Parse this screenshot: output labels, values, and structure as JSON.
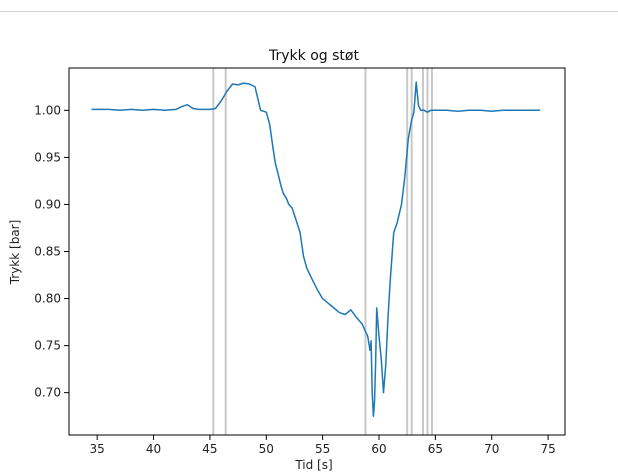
{
  "chart_data": {
    "type": "line",
    "title": "Trykk og støt",
    "xlabel": "Tid [s]",
    "ylabel": "Trykk [bar]",
    "xlim": [
      32.5,
      76.5
    ],
    "ylim": [
      0.655,
      1.045
    ],
    "xticks": [
      35,
      40,
      45,
      50,
      55,
      60,
      65,
      70,
      75
    ],
    "xtick_labels": [
      "35",
      "40",
      "45",
      "50",
      "55",
      "60",
      "65",
      "70",
      "75"
    ],
    "yticks": [
      0.7,
      0.75,
      0.8,
      0.85,
      0.9,
      0.95,
      1.0
    ],
    "ytick_labels": [
      "0.70",
      "0.75",
      "0.80",
      "0.85",
      "0.90",
      "0.95",
      "1.00"
    ],
    "grid": false,
    "colors": {
      "series": "#1f77b4",
      "vlines": "#c8c8c8"
    },
    "vlines": [
      45.3,
      46.4,
      58.8,
      62.5,
      62.9,
      63.9,
      64.3,
      64.7
    ],
    "series": [
      {
        "x": [
          34.5,
          36,
          37,
          38,
          39,
          40,
          41,
          42,
          42.5,
          43,
          43.5,
          44,
          45,
          45.5,
          46,
          46.5,
          47,
          47.5,
          48,
          48.5,
          49,
          49.5,
          50,
          50.3,
          50.6,
          50.8,
          51,
          51.3,
          51.5,
          51.8,
          52,
          52.3,
          52.6,
          53,
          53.3,
          53.6,
          54,
          54.5,
          55,
          55.5,
          56,
          56.5,
          57,
          57.5,
          58,
          58.5,
          58.8,
          59,
          59.2,
          59.3,
          59.4,
          59.5,
          59.6,
          59.7,
          59.8,
          60,
          60.2,
          60.4,
          60.6,
          60.8,
          61,
          61.3,
          61.6,
          62,
          62.3,
          62.6,
          62.9,
          63.1,
          63.3,
          63.5,
          63.7,
          64,
          64.3,
          64.6,
          65,
          66,
          67,
          68,
          69,
          70,
          71,
          72,
          73,
          74.3
        ],
        "y": [
          1.001,
          1.001,
          1.0,
          1.001,
          1.0,
          1.001,
          1.0,
          1.001,
          1.004,
          1.006,
          1.002,
          1.001,
          1.001,
          1.002,
          1.01,
          1.02,
          1.028,
          1.027,
          1.029,
          1.028,
          1.025,
          1.0,
          0.998,
          0.985,
          0.96,
          0.944,
          0.935,
          0.92,
          0.912,
          0.906,
          0.9,
          0.896,
          0.885,
          0.87,
          0.845,
          0.832,
          0.822,
          0.81,
          0.8,
          0.795,
          0.79,
          0.785,
          0.783,
          0.788,
          0.78,
          0.773,
          0.765,
          0.76,
          0.745,
          0.755,
          0.7,
          0.675,
          0.69,
          0.73,
          0.79,
          0.76,
          0.735,
          0.7,
          0.73,
          0.78,
          0.82,
          0.87,
          0.88,
          0.9,
          0.93,
          0.97,
          0.99,
          0.998,
          1.03,
          1.005,
          1.0,
          1.0,
          0.998,
          1.0,
          1.0,
          1.0,
          0.999,
          1.0,
          1.0,
          0.999,
          1.0,
          1.0,
          1.0,
          1.0
        ]
      }
    ]
  }
}
